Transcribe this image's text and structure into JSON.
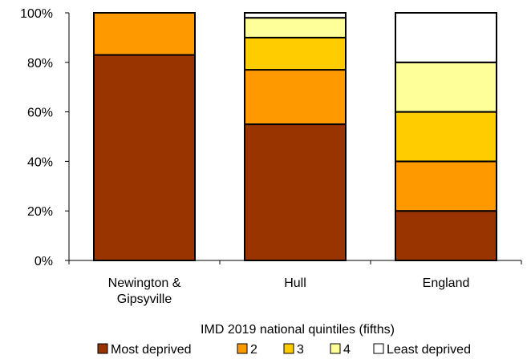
{
  "chart_data": {
    "type": "bar",
    "stacked": true,
    "categories": [
      "Newington &\nGipsyville",
      "Hull",
      "England"
    ],
    "series": [
      {
        "name": "Most deprived",
        "color": "#993300",
        "values": [
          83,
          55,
          20
        ]
      },
      {
        "name": "2",
        "color": "#FF9900",
        "values": [
          17,
          22,
          20
        ]
      },
      {
        "name": "3",
        "color": "#FFCC00",
        "values": [
          0,
          13,
          20
        ]
      },
      {
        "name": "4",
        "color": "#FFFF99",
        "values": [
          0,
          8,
          20
        ]
      },
      {
        "name": "Least deprived",
        "color": "#FFFFFF",
        "values": [
          0,
          2,
          20
        ]
      }
    ],
    "y_ticks": [
      "0%",
      "20%",
      "40%",
      "60%",
      "80%",
      "100%"
    ],
    "ylim": [
      0,
      100
    ],
    "grid": false,
    "legend_title": "IMD 2019 national quintiles (fifths)",
    "legend_position": "bottom"
  }
}
